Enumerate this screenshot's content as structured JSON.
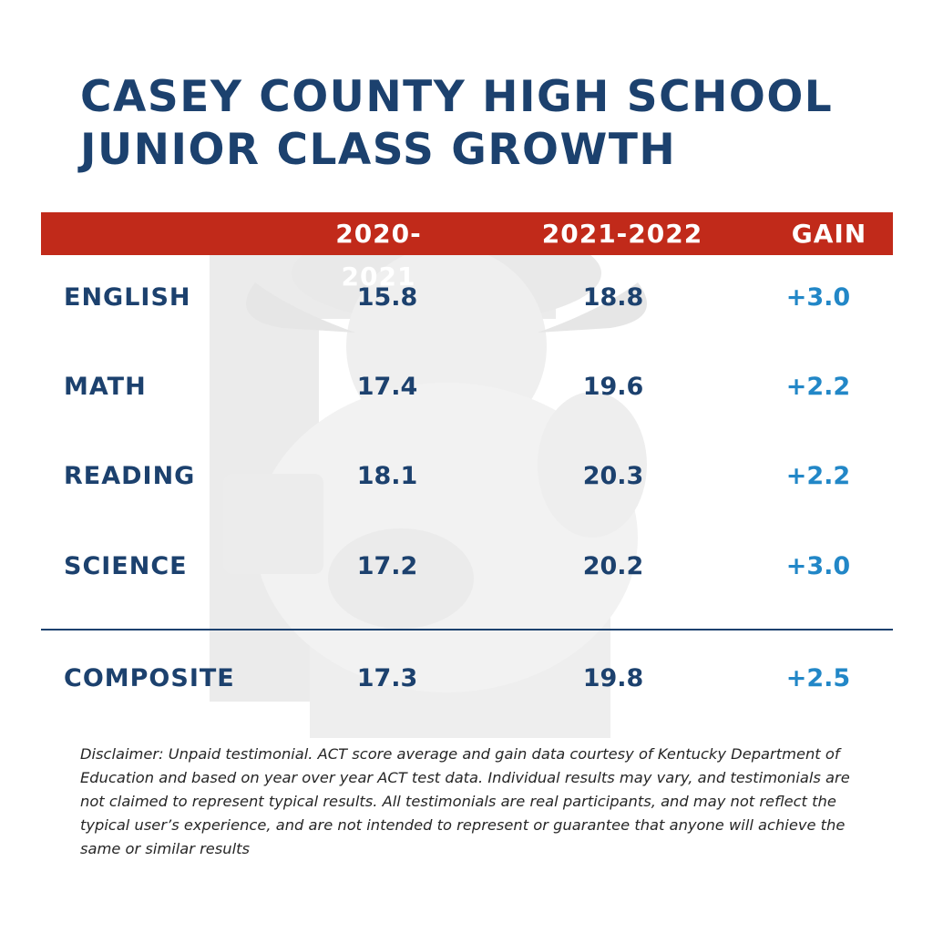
{
  "title": {
    "line1": "CASEY COUNTY HIGH SCHOOL",
    "line2": "JUNIOR CLASS GROWTH"
  },
  "columns": [
    "2020-2021",
    "2021-2022",
    "GAIN"
  ],
  "rows": [
    {
      "label": "ENGLISH",
      "y2021": "15.8",
      "y2022": "18.8",
      "gain": "+3.0"
    },
    {
      "label": "MATH",
      "y2021": "17.4",
      "y2022": "19.6",
      "gain": "+2.2"
    },
    {
      "label": "READING",
      "y2021": "18.1",
      "y2022": "20.3",
      "gain": "+2.2"
    },
    {
      "label": "SCIENCE",
      "y2021": "17.2",
      "y2022": "20.2",
      "gain": "+3.0"
    }
  ],
  "composite": {
    "label": "COMPOSITE",
    "y2021": "17.3",
    "y2022": "19.8",
    "gain": "+2.5"
  },
  "disclaimer": "Disclaimer: Unpaid testimonial. ACT score average and gain data courtesy of Kentucky Department of Education and based on year over year ACT test data. Individual results may vary, and testimonials are not claimed to represent typical results. All testimonials are real participants, and may not reflect the typical user’s experience, and are not intended to represent or guarantee that anyone will achieve the same or similar results",
  "colors": {
    "navy": "#1c416e",
    "red": "#c12a1a",
    "gain_blue": "#2287c7"
  },
  "chart_data": {
    "type": "table",
    "columns": [
      "2020-2021",
      "2021-2022",
      "GAIN"
    ],
    "rows": [
      {
        "label": "ENGLISH",
        "values": [
          15.8,
          18.8,
          3.0
        ]
      },
      {
        "label": "MATH",
        "values": [
          17.4,
          19.6,
          2.2
        ]
      },
      {
        "label": "READING",
        "values": [
          18.1,
          20.3,
          2.2
        ]
      },
      {
        "label": "SCIENCE",
        "values": [
          17.2,
          20.2,
          3.0
        ]
      },
      {
        "label": "COMPOSITE",
        "values": [
          17.3,
          19.8,
          2.5
        ]
      }
    ]
  }
}
